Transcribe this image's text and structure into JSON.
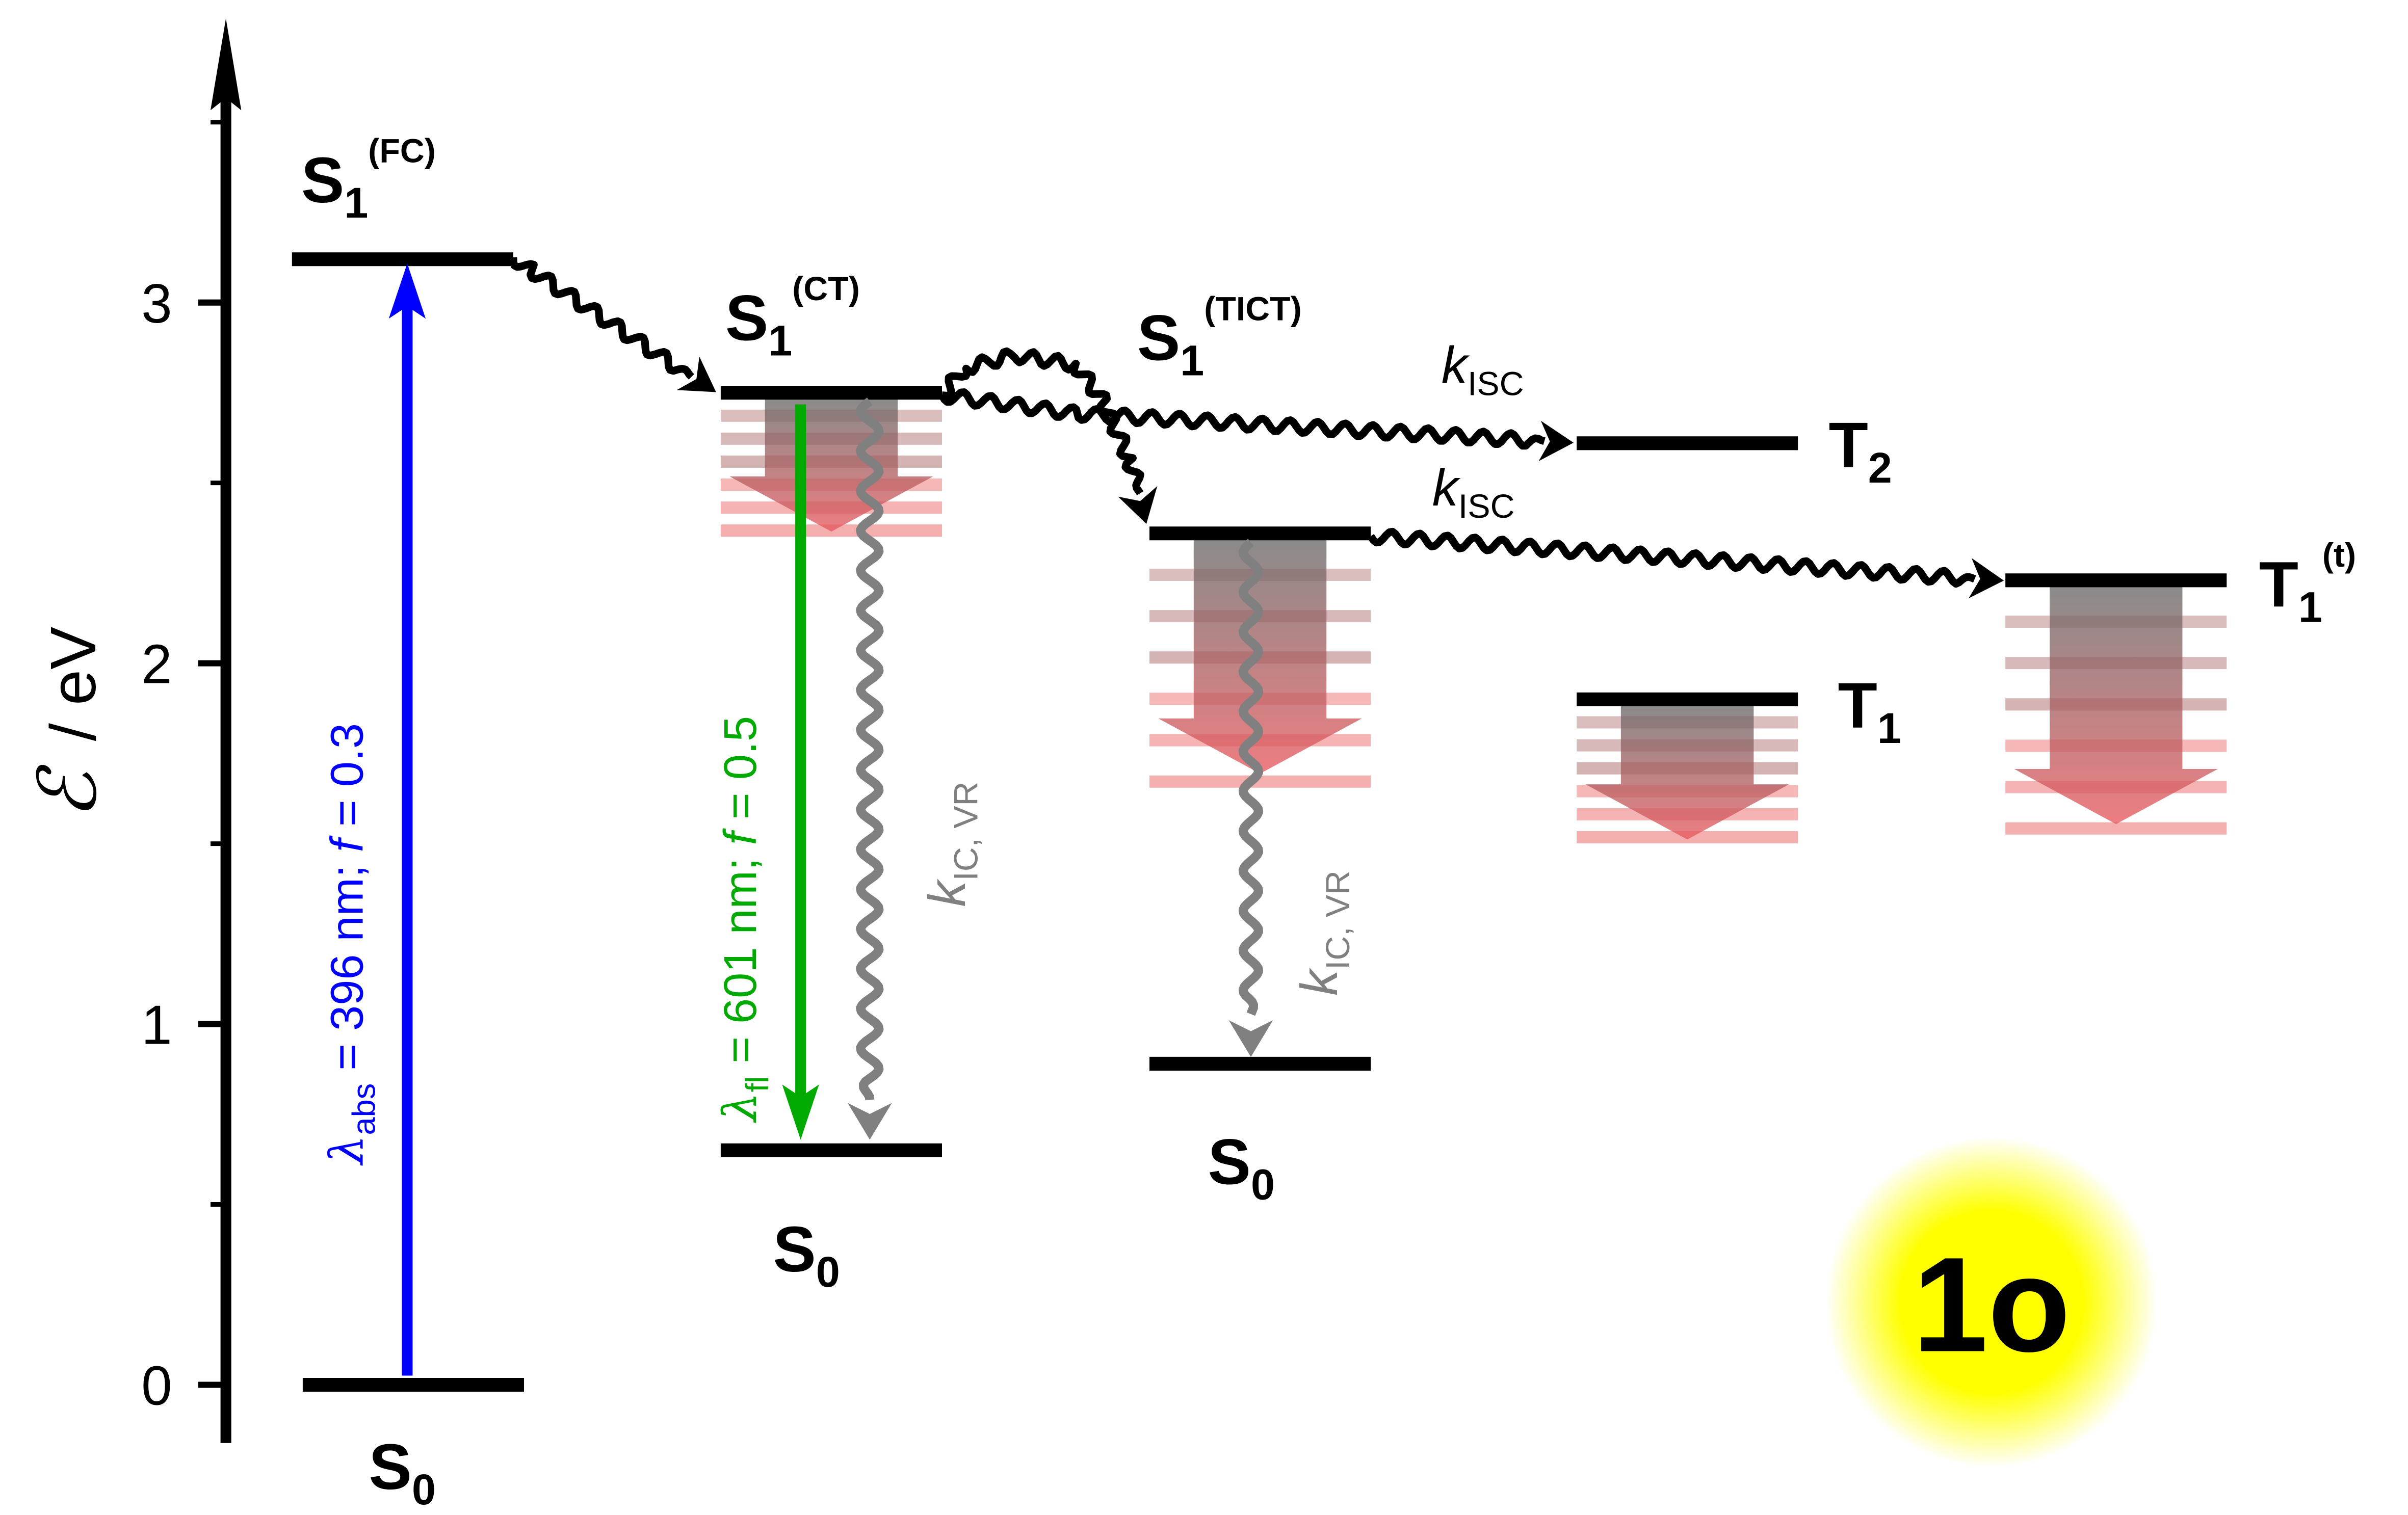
{
  "axis": {
    "label_symbol": "ℰ",
    "label_unit": "/ eV",
    "ticks": [
      {
        "value": 0,
        "label": "0"
      },
      {
        "value": 1,
        "label": "1"
      },
      {
        "value": 2,
        "label": "2"
      },
      {
        "value": 3,
        "label": "3"
      }
    ],
    "minor_ticks": [
      0.5,
      1.5,
      2.5,
      3.5
    ],
    "range": [
      -0.16,
      3.8
    ]
  },
  "levels": {
    "s0_ground": {
      "energy": 0.0,
      "label": "S",
      "sub": "0"
    },
    "s1_fc": {
      "energy": 3.12,
      "label": "S",
      "sub": "1",
      "sup": "(FC)"
    },
    "s1_ct": {
      "energy": 2.75,
      "label": "S",
      "sub": "1",
      "sup": "(CT)"
    },
    "s0_ct": {
      "energy": 0.65,
      "label": "S",
      "sub": "0"
    },
    "s1_tict": {
      "energy": 2.36,
      "label": "S",
      "sub": "1",
      "sup": "(TICT)"
    },
    "s0_tict": {
      "energy": 0.89,
      "label": "S",
      "sub": "0"
    },
    "t2": {
      "energy": 2.61,
      "label": "T",
      "sub": "2"
    },
    "t1": {
      "energy": 1.9,
      "label": "T",
      "sub": "1"
    },
    "t1_t": {
      "energy": 2.23,
      "label": "T",
      "sub": "1",
      "sup": "(t)"
    }
  },
  "transitions": {
    "absorption": {
      "lambda_sub": "abs",
      "rest": " = 396 nm; ",
      "f_symbol": "f",
      "f_rest": " = 0.3",
      "color": "#0000ff"
    },
    "fluorescence": {
      "lambda_sub": "fl",
      "rest": " = 601 nm; ",
      "f_symbol": "f",
      "f_rest": " = 0.5",
      "color": "#00aa00"
    },
    "k_ic_vr": {
      "k": "k",
      "sub": "IC, VR",
      "color": "#808080"
    },
    "k_isc": {
      "k": "k",
      "sub": "ISC",
      "color": "#000000"
    }
  },
  "compound_badge": {
    "text": "1o",
    "glow_color": "#ffff00"
  }
}
